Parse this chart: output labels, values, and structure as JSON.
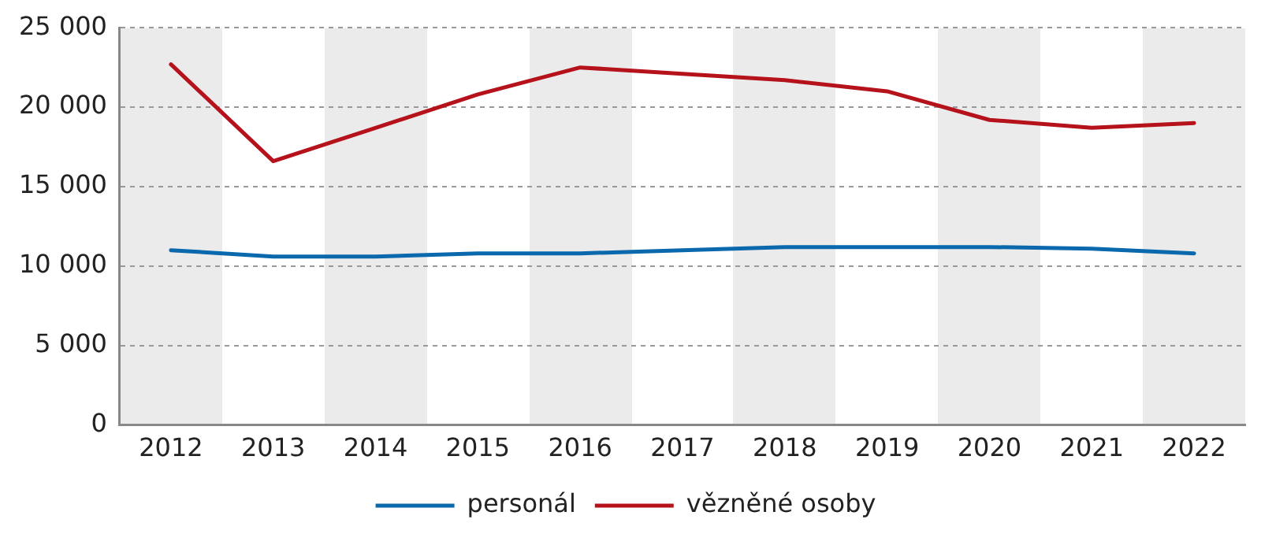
{
  "chart_data": {
    "type": "line",
    "categories": [
      "2012",
      "2013",
      "2014",
      "2015",
      "2016",
      "2017",
      "2018",
      "2019",
      "2020",
      "2021",
      "2022"
    ],
    "series": [
      {
        "name": "personál",
        "color": "#0a68ad",
        "values": [
          11000,
          10600,
          10600,
          10800,
          10800,
          11000,
          11200,
          11200,
          11200,
          11100,
          10800
        ]
      },
      {
        "name": "vězněné osoby",
        "color": "#b5121b",
        "values": [
          22700,
          16600,
          18700,
          20800,
          22500,
          22100,
          21700,
          21000,
          19200,
          18700,
          19000
        ]
      }
    ],
    "ylim": [
      0,
      25000
    ],
    "yticks": [
      {
        "value": 0,
        "label": "0"
      },
      {
        "value": 5000,
        "label": "5 000"
      },
      {
        "value": 10000,
        "label": "10 000"
      },
      {
        "value": 15000,
        "label": "15 000"
      },
      {
        "value": 20000,
        "label": "20 000"
      },
      {
        "value": 25000,
        "label": "25 000"
      }
    ],
    "grid": "y",
    "legend": "bottom",
    "marker": "none",
    "line_style": "solid"
  }
}
